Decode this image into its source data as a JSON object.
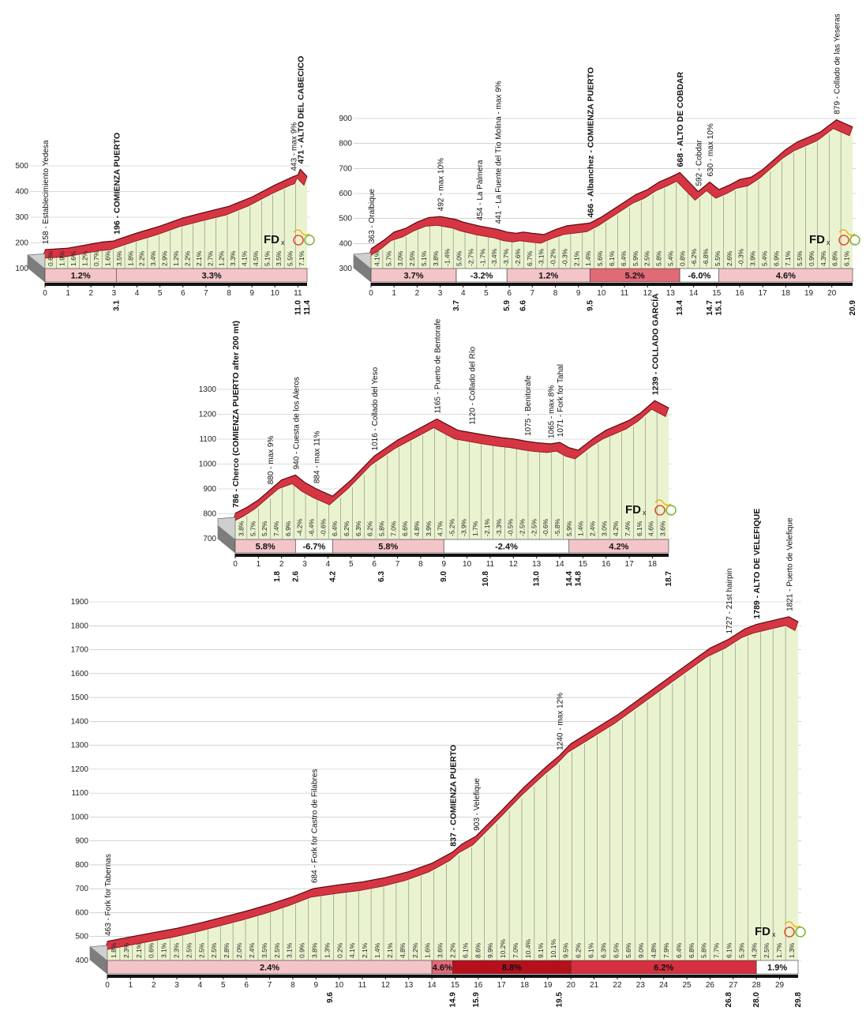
{
  "chart_data": [
    {
      "type": "area",
      "title": "",
      "ylim": [
        100,
        500
      ],
      "yticks": [
        100,
        200,
        300,
        400,
        500
      ],
      "xlim": [
        0,
        11.4
      ],
      "x_ticks": [
        0,
        1,
        2,
        3,
        4,
        5,
        6,
        7,
        8,
        9,
        10,
        11
      ],
      "x_markers": [
        {
          "x": 3.1,
          "label": "3.1"
        },
        {
          "x": 11.0,
          "label": "11.0"
        },
        {
          "x": 11.4,
          "label": "11.4"
        }
      ],
      "profile": [
        [
          0,
          158
        ],
        [
          1,
          164
        ],
        [
          2,
          180
        ],
        [
          2.5,
          188
        ],
        [
          3,
          192
        ],
        [
          3.1,
          196
        ],
        [
          4,
          223
        ],
        [
          5,
          250
        ],
        [
          6,
          282
        ],
        [
          7,
          305
        ],
        [
          8,
          327
        ],
        [
          9,
          363
        ],
        [
          10,
          410
        ],
        [
          10.8,
          443
        ],
        [
          11.0,
          449
        ],
        [
          11.1,
          471
        ],
        [
          11.4,
          443
        ]
      ],
      "km_gradients": [
        "0.6%",
        "1.9%",
        "1.6%",
        "1.2%",
        "0.7%",
        "1.6%",
        "3.5%",
        "1.8%",
        "2.2%",
        "3.4%",
        "2.9%",
        "1.2%",
        "2.2%",
        "2.1%",
        "2.7%",
        "1.2%",
        "3.3%",
        "4.1%",
        "4.5%",
        "5.1%",
        "3.5%",
        "5.5%",
        "7.1%"
      ],
      "sections": [
        {
          "from": 0,
          "to": 3.1,
          "label": "1.2%",
          "shade": 1
        },
        {
          "from": 3.1,
          "to": 11.4,
          "label": "3.3%",
          "shade": 1
        }
      ],
      "annotations": [
        {
          "x": 0,
          "y": 158,
          "label": "158 - Establecimiento Yedesa",
          "bold": false
        },
        {
          "x": 3.1,
          "y": 196,
          "label": "196 - COMIENZA PUERTO",
          "bold": true
        },
        {
          "x": 10.8,
          "y": 443,
          "label": "443 - max 9%",
          "bold": false
        },
        {
          "x": 11.1,
          "y": 471,
          "label": "471 - ALTO DEL CABECICO",
          "bold": true
        }
      ],
      "logo": {
        "text": "FD",
        "x": "x"
      }
    },
    {
      "type": "area",
      "title": "",
      "ylim": [
        300,
        900
      ],
      "yticks": [
        300,
        400,
        500,
        600,
        700,
        800,
        900
      ],
      "xlim": [
        0,
        20.9
      ],
      "x_ticks": [
        0,
        1,
        2,
        3,
        4,
        5,
        6,
        7,
        8,
        9,
        10,
        11,
        12,
        13,
        14,
        15,
        16,
        17,
        18,
        19,
        20
      ],
      "x_markers": [
        {
          "x": 3.7,
          "label": "3.7"
        },
        {
          "x": 5.9,
          "label": "5.9"
        },
        {
          "x": 6.6,
          "label": "6.6"
        },
        {
          "x": 9.5,
          "label": "9.5"
        },
        {
          "x": 13.4,
          "label": "13.4"
        },
        {
          "x": 14.7,
          "label": "14.7"
        },
        {
          "x": 15.1,
          "label": "15.1"
        },
        {
          "x": 20.9,
          "label": "20.9"
        }
      ],
      "profile": [
        [
          0,
          363
        ],
        [
          0.6,
          400
        ],
        [
          1,
          430
        ],
        [
          1.5,
          445
        ],
        [
          2,
          470
        ],
        [
          2.5,
          488
        ],
        [
          3,
          492
        ],
        [
          3.7,
          480
        ],
        [
          4,
          470
        ],
        [
          4.7,
          454
        ],
        [
          5.5,
          441
        ],
        [
          5.9,
          430
        ],
        [
          6.3,
          425
        ],
        [
          6.6,
          430
        ],
        [
          7,
          425
        ],
        [
          7.5,
          420
        ],
        [
          8,
          440
        ],
        [
          8.5,
          455
        ],
        [
          9.5,
          466
        ],
        [
          10,
          490
        ],
        [
          10.5,
          520
        ],
        [
          11,
          550
        ],
        [
          11.5,
          580
        ],
        [
          12,
          600
        ],
        [
          12.5,
          630
        ],
        [
          13,
          650
        ],
        [
          13.4,
          668
        ],
        [
          13.8,
          630
        ],
        [
          14.2,
          592
        ],
        [
          14.7,
          630
        ],
        [
          15.1,
          600
        ],
        [
          15.6,
          620
        ],
        [
          16,
          640
        ],
        [
          16.5,
          650
        ],
        [
          17,
          680
        ],
        [
          17.5,
          720
        ],
        [
          18,
          760
        ],
        [
          18.5,
          790
        ],
        [
          19,
          810
        ],
        [
          19.5,
          830
        ],
        [
          20.2,
          879
        ],
        [
          20.9,
          850
        ]
      ],
      "km_gradients": [
        "4.1%",
        "5.7%",
        "3.0%",
        "2.5%",
        "5.1%",
        "3.8%",
        "-1.4%",
        "5.0%",
        "-2.7%",
        "-1.7%",
        "-3.4%",
        "-3.7%",
        "-2.6%",
        "6.7%",
        "-3.1%",
        "-0.2%",
        "-0.3%",
        "2.1%",
        "1.4%",
        "5.6%",
        "6.1%",
        "6.4%",
        "5.9%",
        "2.5%",
        "5.8%",
        "5.4%",
        "0.8%",
        "-6.2%",
        "-6.8%",
        "5.5%",
        "2.6%",
        "-0.3%",
        "3.9%",
        "5.4%",
        "6.9%",
        "7.1%",
        "5.5%",
        "0.9%",
        "4.3%",
        "6.8%",
        "6.1%"
      ],
      "sections": [
        {
          "from": 0,
          "to": 3.7,
          "label": "3.7%",
          "shade": 1
        },
        {
          "from": 3.7,
          "to": 5.9,
          "label": "-3.2%",
          "shade": 0
        },
        {
          "from": 5.9,
          "to": 9.5,
          "label": "1.2%",
          "shade": 1
        },
        {
          "from": 9.5,
          "to": 13.4,
          "label": "5.2%",
          "shade": 2
        },
        {
          "from": 13.4,
          "to": 15.1,
          "label": "-6.0%",
          "shade": 0
        },
        {
          "from": 15.1,
          "to": 20.9,
          "label": "4.6%",
          "shade": 1
        }
      ],
      "annotations": [
        {
          "x": 0,
          "y": 363,
          "label": "363 - Oralbique",
          "bold": false
        },
        {
          "x": 3.0,
          "y": 492,
          "label": "492 - max 10%",
          "bold": false
        },
        {
          "x": 4.7,
          "y": 454,
          "label": "454 - La Palmera",
          "bold": false
        },
        {
          "x": 5.5,
          "y": 441,
          "label": "441 - La Fuente del Tío Molina - max 9%",
          "bold": false
        },
        {
          "x": 9.5,
          "y": 466,
          "label": "466 - Albanchez - COMIENZA PUERTO",
          "bold": true
        },
        {
          "x": 13.4,
          "y": 668,
          "label": "668 - ALTO DE COBDAR",
          "bold": true
        },
        {
          "x": 14.2,
          "y": 592,
          "label": "592 - Cobdar",
          "bold": false
        },
        {
          "x": 14.7,
          "y": 630,
          "label": "630 - max 10%",
          "bold": false
        },
        {
          "x": 20.2,
          "y": 879,
          "label": "879 - Collado de las Yeseras",
          "bold": false
        }
      ],
      "logo": {
        "text": "FD",
        "x": "x"
      }
    },
    {
      "type": "area",
      "title": "",
      "ylim": [
        700,
        1300
      ],
      "yticks": [
        700,
        800,
        900,
        1000,
        1100,
        1200,
        1300
      ],
      "xlim": [
        0,
        18.7
      ],
      "x_ticks": [
        0,
        1,
        2,
        3,
        4,
        5,
        6,
        7,
        8,
        9,
        10,
        11,
        12,
        13,
        14,
        15,
        16,
        17,
        18
      ],
      "x_markers": [
        {
          "x": 1.8,
          "label": "1.8"
        },
        {
          "x": 2.6,
          "label": "2.6"
        },
        {
          "x": 4.2,
          "label": "4.2"
        },
        {
          "x": 6.3,
          "label": "6.3"
        },
        {
          "x": 9.0,
          "label": "9.0"
        },
        {
          "x": 10.8,
          "label": "10.8"
        },
        {
          "x": 13.0,
          "label": "13.0"
        },
        {
          "x": 14.4,
          "label": "14.4"
        },
        {
          "x": 14.8,
          "label": "14.8"
        },
        {
          "x": 18.7,
          "label": "18.7"
        }
      ],
      "profile": [
        [
          0,
          786
        ],
        [
          0.5,
          810
        ],
        [
          1,
          840
        ],
        [
          1.5,
          880
        ],
        [
          2,
          920
        ],
        [
          2.6,
          940
        ],
        [
          3,
          910
        ],
        [
          3.5,
          884
        ],
        [
          4.2,
          855
        ],
        [
          5,
          920
        ],
        [
          6,
          1016
        ],
        [
          7,
          1080
        ],
        [
          8,
          1130
        ],
        [
          8.7,
          1165
        ],
        [
          9,
          1150
        ],
        [
          9.6,
          1120
        ],
        [
          10.2,
          1110
        ],
        [
          10.8,
          1100
        ],
        [
          11.5,
          1090
        ],
        [
          12,
          1085
        ],
        [
          12.6,
          1075
        ],
        [
          13.0,
          1070
        ],
        [
          13.6,
          1065
        ],
        [
          14.0,
          1071
        ],
        [
          14.4,
          1050
        ],
        [
          14.8,
          1040
        ],
        [
          15.5,
          1090
        ],
        [
          16,
          1120
        ],
        [
          17,
          1160
        ],
        [
          17.5,
          1190
        ],
        [
          18.1,
          1239
        ],
        [
          18.7,
          1210
        ]
      ],
      "km_gradients": [
        "3.8%",
        "5.7%",
        "5.2%",
        "7.4%",
        "6.9%",
        "-4.2%",
        "-6.4%",
        "-0.6%",
        "6.4%",
        "6.2%",
        "6.3%",
        "6.2%",
        "5.8%",
        "7.0%",
        "6.6%",
        "4.8%",
        "3.9%",
        "4.7%",
        "-5.2%",
        "-3.9%",
        "1.7%",
        "-2.1%",
        "-3.3%",
        "-0.5%",
        "-2.5%",
        "-2.5%",
        "-0.6%",
        "-5.8%",
        "5.9%",
        "1.4%",
        "2.4%",
        "3.0%",
        "4.2%",
        "7.4%",
        "6.1%",
        "4.6%",
        "3.6%"
      ],
      "sections": [
        {
          "from": 0,
          "to": 2.6,
          "label": "5.8%",
          "shade": 1
        },
        {
          "from": 2.6,
          "to": 4.2,
          "label": "-6.7%",
          "shade": 0
        },
        {
          "from": 4.2,
          "to": 9.0,
          "label": "5.8%",
          "shade": 1
        },
        {
          "from": 9.0,
          "to": 14.4,
          "label": "-2.4%",
          "shade": 0
        },
        {
          "from": 14.4,
          "to": 18.7,
          "label": "4.2%",
          "shade": 1
        }
      ],
      "annotations": [
        {
          "x": 0,
          "y": 786,
          "label": "786 - Cherco (COMIENZA PUERTO after 200 mt)",
          "bold": true
        },
        {
          "x": 1.5,
          "y": 880,
          "label": "880 - max 9%",
          "bold": false
        },
        {
          "x": 2.6,
          "y": 940,
          "label": "940 - Cuesta de los Aleros",
          "bold": false
        },
        {
          "x": 3.5,
          "y": 884,
          "label": "884 - max 11%",
          "bold": false
        },
        {
          "x": 6.0,
          "y": 1016,
          "label": "1016 - Collado del Yeso",
          "bold": false
        },
        {
          "x": 8.7,
          "y": 1165,
          "label": "1165 - Puerto de Bentorafe",
          "bold": false
        },
        {
          "x": 10.2,
          "y": 1120,
          "label": "1120 - Collado del Río",
          "bold": false
        },
        {
          "x": 12.6,
          "y": 1075,
          "label": "1075 - Benitorafe",
          "bold": false
        },
        {
          "x": 13.6,
          "y": 1065,
          "label": "1065 - max 8%",
          "bold": false
        },
        {
          "x": 14.0,
          "y": 1071,
          "label": "1071 - Fork for Tahal",
          "bold": false
        },
        {
          "x": 18.1,
          "y": 1239,
          "label": "1239 - COLLADO GARCÍA",
          "bold": true
        }
      ],
      "logo": {
        "text": "FD",
        "x": "x"
      }
    },
    {
      "type": "area",
      "title": "",
      "ylim": [
        400,
        1900
      ],
      "yticks": [
        400,
        500,
        600,
        700,
        800,
        900,
        1000,
        1100,
        1200,
        1300,
        1400,
        1500,
        1600,
        1700,
        1800,
        1900
      ],
      "xlim": [
        0,
        29.8
      ],
      "x_ticks": [
        0,
        1,
        2,
        3,
        4,
        5,
        6,
        7,
        8,
        9,
        10,
        11,
        12,
        13,
        14,
        15,
        16,
        17,
        18,
        19,
        20,
        21,
        22,
        23,
        24,
        25,
        26,
        27,
        28,
        29
      ],
      "x_markers": [
        {
          "x": 9.6,
          "label": "9.6"
        },
        {
          "x": 14.9,
          "label": "14.9"
        },
        {
          "x": 15.9,
          "label": "15.9"
        },
        {
          "x": 19.5,
          "label": "19.5"
        },
        {
          "x": 26.8,
          "label": "26.8"
        },
        {
          "x": 28.0,
          "label": "28.0"
        },
        {
          "x": 29.8,
          "label": "29.8"
        }
      ],
      "profile": [
        [
          0,
          463
        ],
        [
          1,
          482
        ],
        [
          2,
          500
        ],
        [
          3,
          518
        ],
        [
          4,
          540
        ],
        [
          5,
          565
        ],
        [
          6,
          590
        ],
        [
          7,
          618
        ],
        [
          8,
          650
        ],
        [
          8.9,
          684
        ],
        [
          10,
          700
        ],
        [
          11,
          712
        ],
        [
          12,
          730
        ],
        [
          13,
          755
        ],
        [
          14,
          790
        ],
        [
          14.9,
          837
        ],
        [
          15.3,
          870
        ],
        [
          15.9,
          903
        ],
        [
          17,
          1010
        ],
        [
          18,
          1110
        ],
        [
          19,
          1200
        ],
        [
          19.5,
          1240
        ],
        [
          20,
          1290
        ],
        [
          21,
          1350
        ],
        [
          22,
          1410
        ],
        [
          23,
          1480
        ],
        [
          24,
          1550
        ],
        [
          25,
          1620
        ],
        [
          26,
          1690
        ],
        [
          26.8,
          1727
        ],
        [
          27.5,
          1770
        ],
        [
          28,
          1789
        ],
        [
          29,
          1812
        ],
        [
          29.4,
          1821
        ],
        [
          29.8,
          1800
        ]
      ],
      "km_gradients": [
        "1.8%",
        "2.3%",
        "2.1%",
        "0.6%",
        "3.1%",
        "2.3%",
        "2.5%",
        "2.5%",
        "2.5%",
        "2.8%",
        "2.0%",
        "2.4%",
        "3.5%",
        "2.5%",
        "3.1%",
        "0.9%",
        "3.8%",
        "1.3%",
        "0.2%",
        "4.1%",
        "2.1%",
        "1.4%",
        "2.1%",
        "4.8%",
        "2.2%",
        "1.6%",
        "3.6%",
        "2.2%",
        "6.1%",
        "8.6%",
        "9.9%",
        "10.2%",
        "7.0%",
        "10.4%",
        "9.1%",
        "10.1%",
        "9.5%",
        "6.2%",
        "6.1%",
        "6.3%",
        "6.5%",
        "5.6%",
        "9.0%",
        "4.8%",
        "7.9%",
        "6.4%",
        "6.8%",
        "5.8%",
        "7.7%",
        "6.1%",
        "5.3%",
        "4.3%",
        "2.5%",
        "1.7%",
        "1.3%"
      ],
      "sections": [
        {
          "from": 0,
          "to": 14.0,
          "label": "2.4%",
          "shade": 1
        },
        {
          "from": 14.0,
          "to": 14.9,
          "label": "4.6%",
          "shade": 2
        },
        {
          "from": 14.9,
          "to": 20.0,
          "label": "8.8%",
          "shade": 4
        },
        {
          "from": 20.0,
          "to": 28.0,
          "label": "6.2%",
          "shade": 3
        },
        {
          "from": 28.0,
          "to": 29.8,
          "label": "1.9%",
          "shade": 0
        }
      ],
      "annotations": [
        {
          "x": 0,
          "y": 463,
          "label": "463 - Fork for Tabernas",
          "bold": false
        },
        {
          "x": 8.9,
          "y": 684,
          "label": "684 - Fork for Castro de Filabres",
          "bold": false
        },
        {
          "x": 14.9,
          "y": 837,
          "label": "837 - COMIENZA PUERTO",
          "bold": true
        },
        {
          "x": 15.9,
          "y": 903,
          "label": "903 - Velefique",
          "bold": false
        },
        {
          "x": 19.5,
          "y": 1240,
          "label": "1240 - max 12%",
          "bold": false
        },
        {
          "x": 26.8,
          "y": 1727,
          "label": "1727 - 21st hairpin",
          "bold": false
        },
        {
          "x": 28.0,
          "y": 1789,
          "label": "1789 - ALTO DE VELEFIQUE",
          "bold": true
        },
        {
          "x": 29.4,
          "y": 1821,
          "label": "1821 - Puerto de Velefique",
          "bold": false
        }
      ],
      "logo": {
        "text": "FD",
        "x": "x"
      }
    }
  ]
}
